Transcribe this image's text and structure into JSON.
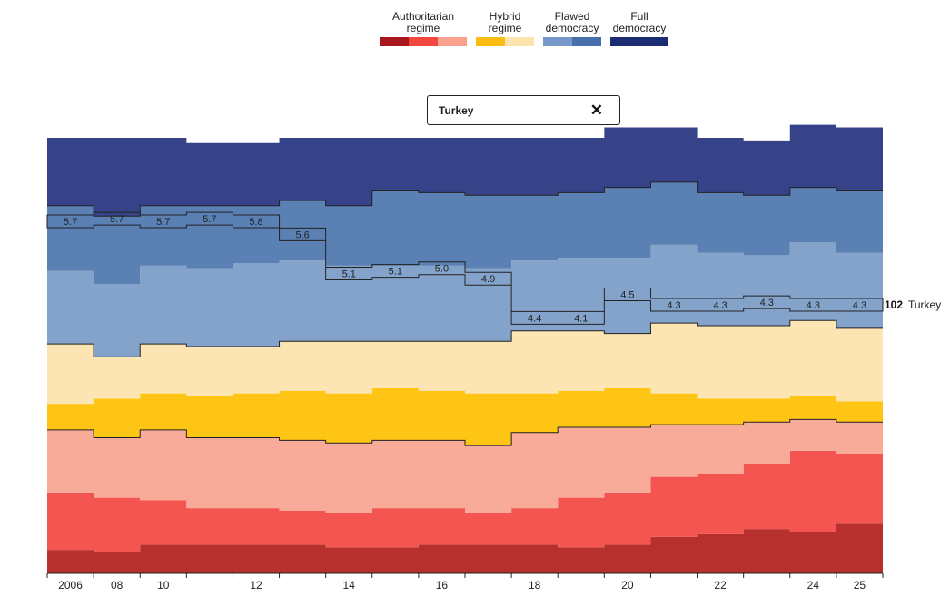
{
  "legend": [
    {
      "label": "Authoritarian\nregime",
      "colors": [
        "#a8171c",
        "#f0473f",
        "#f9a08f"
      ]
    },
    {
      "label": "Hybrid\nregime",
      "colors": [
        "#fbbd14",
        "#fde3ad"
      ]
    },
    {
      "label": "Flawed\ndemocracy",
      "colors": [
        "#7898c9",
        "#4770ab"
      ]
    },
    {
      "label": "Full\ndemocracy",
      "colors": [
        "#1b2c73"
      ]
    }
  ],
  "search": {
    "value": "Turkey",
    "clear_icon": "close-icon"
  },
  "colors": {
    "auth1": "#b8302e",
    "auth2": "#f45550",
    "auth3": "#f9ab9a",
    "hybrid1": "#fec514",
    "hybrid2": "#fde4b3",
    "flawed1": "#84a3cb",
    "flawed2": "#5b80b3",
    "full": "#374389"
  },
  "chart_data": {
    "type": "area",
    "xlabel": "",
    "ylabel": "",
    "x": [
      2006,
      2008,
      2010,
      2011,
      2012,
      2013,
      2014,
      2015,
      2016,
      2017,
      2018,
      2019,
      2020,
      2021,
      2022,
      2023,
      2024,
      2025
    ],
    "x_tick_labels": [
      "2006",
      "08",
      "10",
      "",
      "12",
      "",
      "14",
      "",
      "16",
      "",
      "18",
      "",
      "20",
      "",
      "22",
      "",
      "24",
      "25"
    ],
    "ylim": [
      0,
      167
    ],
    "stacked_band_counts": [
      {
        "name": "Authoritarian regime (lowest)",
        "values": [
          9,
          8,
          11,
          11,
          11,
          11,
          10,
          10,
          11,
          11,
          11,
          10,
          11,
          14,
          15,
          17,
          16,
          19
        ]
      },
      {
        "name": "Authoritarian regime (middle)",
        "values": [
          22,
          21,
          17,
          14,
          14,
          13,
          13,
          15,
          14,
          12,
          14,
          19,
          20,
          23,
          23,
          25,
          31,
          27
        ]
      },
      {
        "name": "Authoritarian regime (upper)",
        "values": [
          24,
          23,
          27,
          27,
          27,
          27,
          27,
          26,
          26,
          26,
          29,
          27,
          25,
          20,
          19,
          16,
          12,
          12
        ]
      },
      {
        "name": "Hybrid regime (lower)",
        "values": [
          10,
          15,
          14,
          16,
          17,
          19,
          19,
          20,
          19,
          20,
          15,
          14,
          15,
          12,
          10,
          9,
          9,
          8
        ]
      },
      {
        "name": "Hybrid regime (upper)",
        "values": [
          23,
          16,
          19,
          19,
          18,
          19,
          20,
          18,
          19,
          20,
          24,
          23,
          21,
          27,
          28,
          28,
          29,
          28
        ]
      },
      {
        "name": "Flawed democracy (lower)",
        "values": [
          28,
          28,
          30,
          30,
          32,
          31,
          29,
          29,
          29,
          28,
          27,
          28,
          29,
          30,
          28,
          27,
          30,
          29
        ]
      },
      {
        "name": "Flawed democracy (upper)",
        "values": [
          25,
          26,
          23,
          24,
          22,
          23,
          23,
          29,
          28,
          28,
          25,
          25,
          27,
          24,
          23,
          23,
          21,
          24
        ]
      },
      {
        "name": "Full democracy",
        "values": [
          26,
          30,
          26,
          24,
          24,
          24,
          26,
          20,
          21,
          22,
          22,
          21,
          23,
          21,
          21,
          21,
          24,
          24
        ]
      }
    ],
    "highlight": {
      "country": "Turkey",
      "rank": 102,
      "scores": [
        5.7,
        5.7,
        5.7,
        5.7,
        5.8,
        5.6,
        5.1,
        5.1,
        5.0,
        4.9,
        4.4,
        4.1,
        4.5,
        4.3,
        4.3,
        4.3,
        4.3,
        4.3
      ],
      "rank_position": [
        135,
        136,
        135,
        136,
        135,
        130,
        115,
        116,
        117,
        113,
        98,
        98,
        107,
        103,
        103,
        104,
        103,
        103
      ]
    }
  }
}
